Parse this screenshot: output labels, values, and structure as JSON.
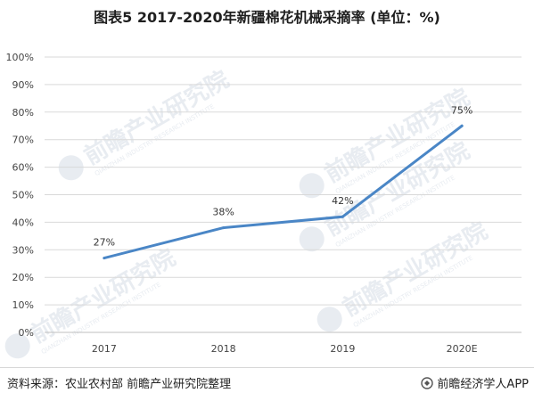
{
  "chart_data": {
    "type": "line",
    "title": "图表5 2017-2020年新疆棉花机械采摘率 (单位：%)",
    "categories": [
      "2017",
      "2018",
      "2019",
      "2020E"
    ],
    "series": [
      {
        "values": [
          27,
          38,
          42,
          75
        ],
        "data_labels": [
          "27%",
          "38%",
          "42%",
          "75%"
        ],
        "color": "#4a86c6"
      }
    ],
    "y_ticks": [
      "0%",
      "10%",
      "20%",
      "30%",
      "40%",
      "50%",
      "60%",
      "70%",
      "80%",
      "90%",
      "100%"
    ],
    "ylim": [
      0,
      100
    ],
    "xlabel": "",
    "ylabel": "",
    "grid": true,
    "legend": "none"
  },
  "footer": {
    "source": "资料来源：农业农村部 前瞻产业研究院整理",
    "brand": "前瞻经济学人APP"
  },
  "watermark": {
    "text": "前瞻产业研究院",
    "subtext": "QIANZHAN INDUSTRY RESEARCH INSTITUTE"
  },
  "colors": {
    "line": "#4a86c6",
    "grid": "#d9d9d9",
    "watermark": "#e8ecf1"
  }
}
